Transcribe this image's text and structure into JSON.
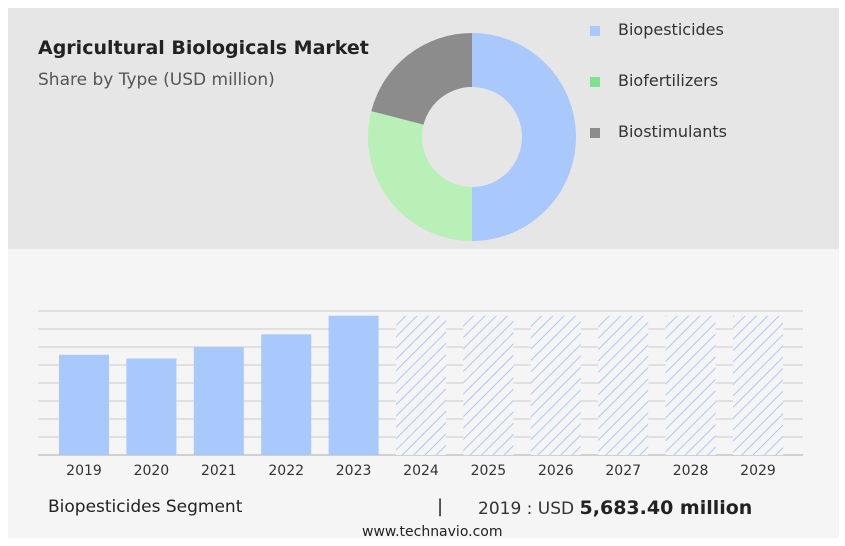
{
  "title": "Agricultural Biologicals Market",
  "subtitle": "Share by Type (USD million)",
  "colors": {
    "biopesticides": "#a9c8fb",
    "biofertilizers": "#b8f0b8",
    "biostimulants": "#8c8c8c",
    "forecast_hatch": "#a9c8fb"
  },
  "donut": {
    "type": "pie",
    "slices": [
      {
        "label": "Biopesticides",
        "value": 50,
        "color": "#a9c8fb"
      },
      {
        "label": "Biofertilizers",
        "value": 29,
        "color": "#b8f0b8"
      },
      {
        "label": "Biostimulants",
        "value": 21,
        "color": "#8c8c8c"
      }
    ]
  },
  "legend": [
    {
      "label": "Biopesticides",
      "color": "#a9c8fb"
    },
    {
      "label": "Biofertilizers",
      "color": "#7fe08f"
    },
    {
      "label": "Biostimulants",
      "color": "#8c8c8c"
    }
  ],
  "chart_data": {
    "type": "bar",
    "categories": [
      "2019",
      "2020",
      "2021",
      "2022",
      "2023",
      "2024",
      "2025",
      "2026",
      "2027",
      "2028",
      "2029"
    ],
    "values": [
      5683.4,
      5470,
      6110,
      6840,
      7890,
      7890,
      7890,
      7890,
      7890,
      7890,
      7890
    ],
    "forecast_from": "2024",
    "ylim": [
      0,
      8500
    ],
    "grid": true
  },
  "footer": {
    "segment": "Biopesticides Segment",
    "divider": "|",
    "value_prefix": "2019 : USD",
    "value_bold": "5,683.40 million"
  },
  "source": "www.technavio.com"
}
